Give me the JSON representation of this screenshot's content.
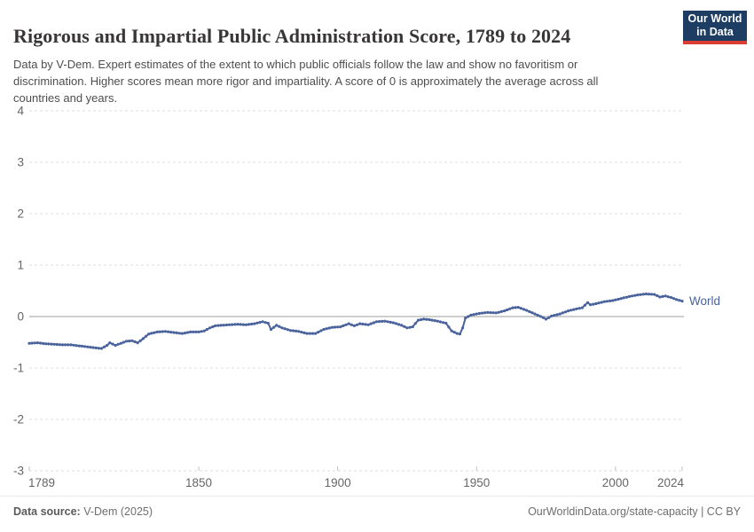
{
  "header": {
    "title": "Rigorous and Impartial Public Administration Score, 1789 to 2024",
    "subtitle": "Data by V-Dem. Expert estimates of the extent to which public officials follow the law and show no favoritism or discrimination. Higher scores mean more rigor and impartiality. A score of 0 is approximately the average across all countries and years.",
    "logo": {
      "line1": "Our World",
      "line2": "in Data",
      "bg_color": "#1d3d63",
      "accent_color": "#dc3d33"
    }
  },
  "footer": {
    "source_label": "Data source:",
    "source_value": "V-Dem (2025)",
    "link": "OurWorldinData.org/state-capacity | CC BY"
  },
  "chart_data": {
    "type": "line",
    "title": "Rigorous and Impartial Public Administration Score, 1789 to 2024",
    "xlabel": "",
    "ylabel": "",
    "x_range": [
      1789,
      2024
    ],
    "y_range": [
      -3,
      4
    ],
    "y_ticks": [
      4,
      3,
      2,
      1,
      0,
      -1,
      -2,
      -3
    ],
    "x_ticks": [
      1789,
      1850,
      1900,
      1950,
      2000,
      2024
    ],
    "grid": "horizontal-dashed",
    "zero_line": true,
    "legend_position": "end-of-line",
    "colors": {
      "grid": "#dcdcdc",
      "zero_line": "#9e9e9e",
      "axis_text": "#666666",
      "tick_mark": "#c2c2c2"
    },
    "series": [
      {
        "name": "World",
        "color": "#4a639c",
        "points": [
          [
            1789,
            -0.52
          ],
          [
            1792,
            -0.51
          ],
          [
            1795,
            -0.53
          ],
          [
            1798,
            -0.54
          ],
          [
            1801,
            -0.55
          ],
          [
            1804,
            -0.55
          ],
          [
            1807,
            -0.57
          ],
          [
            1810,
            -0.59
          ],
          [
            1813,
            -0.61
          ],
          [
            1815,
            -0.62
          ],
          [
            1817,
            -0.56
          ],
          [
            1818,
            -0.51
          ],
          [
            1820,
            -0.56
          ],
          [
            1822,
            -0.52
          ],
          [
            1824,
            -0.48
          ],
          [
            1826,
            -0.47
          ],
          [
            1828,
            -0.51
          ],
          [
            1830,
            -0.43
          ],
          [
            1832,
            -0.34
          ],
          [
            1835,
            -0.3
          ],
          [
            1838,
            -0.29
          ],
          [
            1841,
            -0.31
          ],
          [
            1844,
            -0.33
          ],
          [
            1847,
            -0.3
          ],
          [
            1850,
            -0.3
          ],
          [
            1852,
            -0.28
          ],
          [
            1854,
            -0.22
          ],
          [
            1856,
            -0.18
          ],
          [
            1858,
            -0.17
          ],
          [
            1861,
            -0.16
          ],
          [
            1864,
            -0.15
          ],
          [
            1867,
            -0.16
          ],
          [
            1870,
            -0.14
          ],
          [
            1873,
            -0.1
          ],
          [
            1875,
            -0.13
          ],
          [
            1876,
            -0.25
          ],
          [
            1878,
            -0.17
          ],
          [
            1880,
            -0.22
          ],
          [
            1883,
            -0.27
          ],
          [
            1886,
            -0.29
          ],
          [
            1889,
            -0.33
          ],
          [
            1892,
            -0.33
          ],
          [
            1895,
            -0.25
          ],
          [
            1898,
            -0.21
          ],
          [
            1901,
            -0.2
          ],
          [
            1904,
            -0.14
          ],
          [
            1906,
            -0.18
          ],
          [
            1908,
            -0.14
          ],
          [
            1911,
            -0.16
          ],
          [
            1914,
            -0.1
          ],
          [
            1917,
            -0.09
          ],
          [
            1920,
            -0.12
          ],
          [
            1923,
            -0.17
          ],
          [
            1925,
            -0.22
          ],
          [
            1927,
            -0.2
          ],
          [
            1929,
            -0.07
          ],
          [
            1931,
            -0.05
          ],
          [
            1933,
            -0.06
          ],
          [
            1936,
            -0.09
          ],
          [
            1939,
            -0.13
          ],
          [
            1941,
            -0.28
          ],
          [
            1943,
            -0.33
          ],
          [
            1944,
            -0.34
          ],
          [
            1945,
            -0.22
          ],
          [
            1946,
            -0.03
          ],
          [
            1948,
            0.03
          ],
          [
            1951,
            0.06
          ],
          [
            1954,
            0.08
          ],
          [
            1957,
            0.07
          ],
          [
            1960,
            0.11
          ],
          [
            1963,
            0.17
          ],
          [
            1965,
            0.18
          ],
          [
            1968,
            0.12
          ],
          [
            1971,
            0.05
          ],
          [
            1974,
            -0.02
          ],
          [
            1975,
            -0.05
          ],
          [
            1977,
            0.01
          ],
          [
            1980,
            0.05
          ],
          [
            1983,
            0.11
          ],
          [
            1986,
            0.15
          ],
          [
            1988,
            0.17
          ],
          [
            1990,
            0.27
          ],
          [
            1991,
            0.23
          ],
          [
            1993,
            0.25
          ],
          [
            1996,
            0.29
          ],
          [
            1999,
            0.31
          ],
          [
            2002,
            0.35
          ],
          [
            2005,
            0.39
          ],
          [
            2008,
            0.42
          ],
          [
            2011,
            0.44
          ],
          [
            2014,
            0.43
          ],
          [
            2016,
            0.38
          ],
          [
            2018,
            0.4
          ],
          [
            2020,
            0.37
          ],
          [
            2022,
            0.33
          ],
          [
            2024,
            0.3
          ]
        ]
      }
    ]
  }
}
